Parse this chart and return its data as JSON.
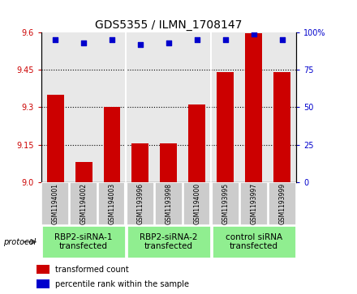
{
  "title": "GDS5355 / ILMN_1708147",
  "samples": [
    "GSM1194001",
    "GSM1194002",
    "GSM1194003",
    "GSM1193996",
    "GSM1193998",
    "GSM1194000",
    "GSM1193995",
    "GSM1193997",
    "GSM1193999"
  ],
  "bar_values": [
    9.35,
    9.08,
    9.3,
    9.155,
    9.155,
    9.31,
    9.44,
    9.595,
    9.44
  ],
  "percentile_values": [
    95,
    93,
    95,
    92,
    93,
    95,
    95,
    99,
    95
  ],
  "ylim_left": [
    9.0,
    9.6
  ],
  "ylim_right": [
    0,
    100
  ],
  "yticks_left": [
    9.0,
    9.15,
    9.3,
    9.45,
    9.6
  ],
  "yticks_right": [
    0,
    25,
    50,
    75,
    100
  ],
  "bar_color": "#cc0000",
  "dot_color": "#0000cc",
  "bg_color": "#e8e8e8",
  "sample_bg_color": "#cccccc",
  "group_color": "#90ee90",
  "groups": [
    {
      "label": "RBP2-siRNA-1\ntransfected",
      "start": 0,
      "end": 3
    },
    {
      "label": "RBP2-siRNA-2\ntransfected",
      "start": 3,
      "end": 6
    },
    {
      "label": "control siRNA\ntransfected",
      "start": 6,
      "end": 9
    }
  ],
  "legend_bar_label": "transformed count",
  "legend_dot_label": "percentile rank within the sample",
  "protocol_label": "protocol",
  "title_fontsize": 10,
  "tick_fontsize": 7,
  "sample_fontsize": 5.5,
  "group_fontsize": 7.5
}
